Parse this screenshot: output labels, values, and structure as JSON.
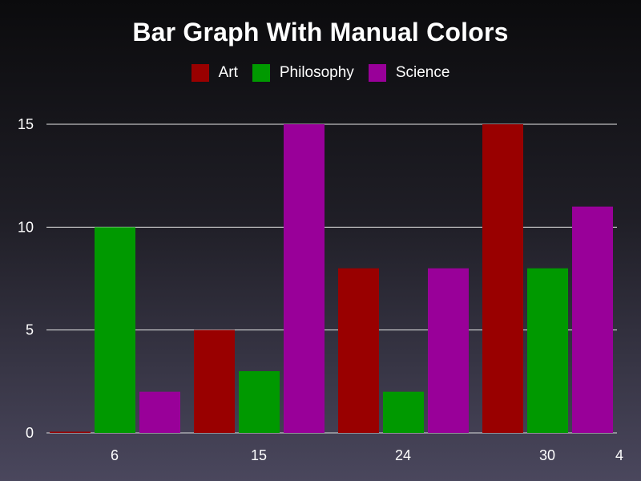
{
  "chart_data": {
    "type": "bar",
    "title": "Bar Graph With Manual Colors",
    "xlabel": "",
    "ylabel": "",
    "categories": [
      "6",
      "15",
      "24",
      "30"
    ],
    "extra_x_tick": "4",
    "ylim": [
      0,
      15
    ],
    "yticks": [
      0,
      5,
      10,
      15
    ],
    "grid": true,
    "legend_position": "top",
    "series": [
      {
        "name": "Art",
        "color": "#990000",
        "values": [
          0,
          5,
          8,
          15
        ]
      },
      {
        "name": "Philosophy",
        "color": "#009900",
        "values": [
          10,
          3,
          2,
          8
        ]
      },
      {
        "name": "Science",
        "color": "#990099",
        "values": [
          2,
          15,
          8,
          11
        ]
      }
    ]
  }
}
